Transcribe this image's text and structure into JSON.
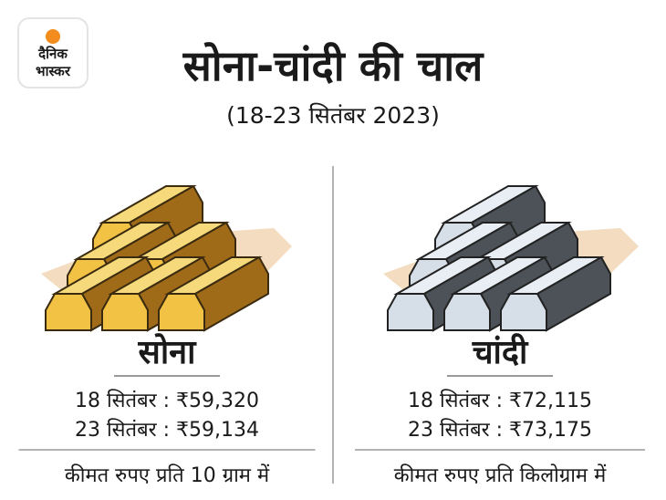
{
  "logo": {
    "line1": "दैनिक",
    "line2": "भास्कर"
  },
  "header": {
    "title": "सोना-चांदी की चाल",
    "subtitle": "(18-23 सितंबर 2023)"
  },
  "panels": [
    {
      "name": "सोना",
      "prices": [
        "18 सितंबर : ₹59,320",
        "23 सितंबर : ₹59,134"
      ],
      "note": "कीमत रुपए प्रति 10 ग्राम में"
    },
    {
      "name": "चांदी",
      "prices": [
        "18 सितंबर : ₹72,115",
        "23 सितंबर : ₹73,175"
      ],
      "note": "कीमत रुपए प्रति किलोग्राम में"
    }
  ]
}
